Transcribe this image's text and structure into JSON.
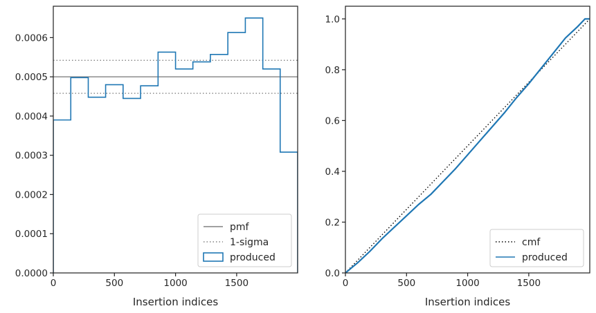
{
  "chart_data": [
    {
      "type": "step",
      "xlabel": "Insertion indices",
      "xlim": [
        0,
        1999
      ],
      "ylim": [
        0,
        0.00068
      ],
      "xticks": [
        0,
        500,
        1000,
        1500
      ],
      "xtick_labels": [
        "0",
        "500",
        "1000",
        "1500"
      ],
      "yticks": [
        0,
        0.0001,
        0.0002,
        0.0003,
        0.0004,
        0.0005,
        0.0006
      ],
      "ytick_labels": [
        "0.0000",
        "0.0001",
        "0.0002",
        "0.0003",
        "0.0004",
        "0.0005",
        "0.0006"
      ],
      "grid": false,
      "legend_position": "lower-right",
      "series": [
        {
          "name": "pmf",
          "kind": "hline",
          "y": 0.0005,
          "color": "#808080",
          "style": "solid"
        },
        {
          "name": "1-sigma",
          "kind": "hlines",
          "y": [
            0.000542,
            0.000458
          ],
          "color": "#808080",
          "style": "dotted"
        },
        {
          "name": "produced",
          "kind": "histogram-step",
          "color": "#1f77b4",
          "bin_edges": [
            0,
            143,
            286,
            428,
            571,
            714,
            857,
            1000,
            1142,
            1285,
            1428,
            1571,
            1714,
            1856,
            1999
          ],
          "values": [
            0.00039,
            0.000498,
            0.000448,
            0.00048,
            0.000445,
            0.000477,
            0.000563,
            0.00052,
            0.000538,
            0.000557,
            0.000613,
            0.00065,
            0.00052,
            0.000308
          ]
        }
      ]
    },
    {
      "type": "line",
      "xlabel": "Insertion indices",
      "xlim": [
        0,
        1999
      ],
      "ylim": [
        0,
        1.05
      ],
      "xticks": [
        0,
        500,
        1000,
        1500
      ],
      "xtick_labels": [
        "0",
        "500",
        "1000",
        "1500"
      ],
      "yticks": [
        0,
        0.2,
        0.4,
        0.6,
        0.8,
        1.0
      ],
      "ytick_labels": [
        "0.0",
        "0.2",
        "0.4",
        "0.6",
        "0.8",
        "1.0"
      ],
      "grid": false,
      "legend_position": "lower-right",
      "series": [
        {
          "name": "cmf",
          "color": "#000000",
          "style": "dotted",
          "x": [
            0,
            1999
          ],
          "y": [
            0,
            1
          ]
        },
        {
          "name": "produced",
          "color": "#1f77b4",
          "style": "solid",
          "x": [
            0,
            100,
            200,
            300,
            400,
            500,
            600,
            700,
            800,
            900,
            1000,
            1100,
            1200,
            1300,
            1400,
            1500,
            1600,
            1700,
            1800,
            1900,
            1960,
            1999
          ],
          "y": [
            0,
            0.04,
            0.085,
            0.135,
            0.18,
            0.225,
            0.27,
            0.31,
            0.36,
            0.41,
            0.465,
            0.52,
            0.575,
            0.63,
            0.69,
            0.745,
            0.805,
            0.865,
            0.925,
            0.97,
            1.0,
            1.0
          ]
        }
      ]
    }
  ]
}
